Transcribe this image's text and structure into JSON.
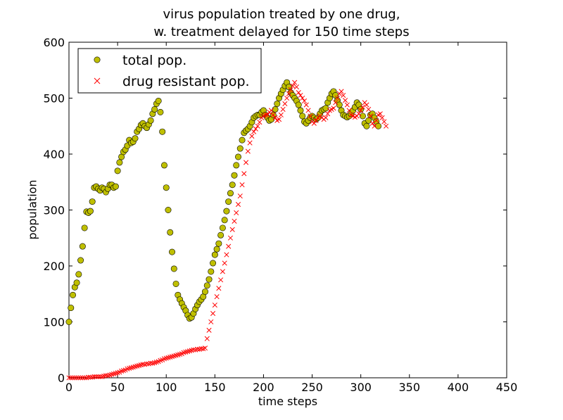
{
  "chart_data": {
    "type": "scatter",
    "title": "virus population treated by one drug,",
    "subtitle": "w. treatment delayed for 150 time steps",
    "xlabel": "time steps",
    "ylabel": "population",
    "xlim": [
      0,
      450
    ],
    "ylim": [
      0,
      600
    ],
    "x_ticks": [
      "0",
      "50",
      "100",
      "150",
      "200",
      "250",
      "300",
      "350",
      "400",
      "450"
    ],
    "y_ticks": [
      "0",
      "100",
      "200",
      "300",
      "400",
      "500",
      "600"
    ],
    "grid": false,
    "legend_position": "top-left",
    "x_step": 2,
    "series": [
      {
        "name": "total pop.",
        "marker": "circle",
        "color": "#bfbf00",
        "values": [
          100,
          125,
          148,
          162,
          170,
          185,
          210,
          235,
          268,
          297,
          295,
          298,
          315,
          340,
          342,
          338,
          335,
          340,
          338,
          332,
          338,
          345,
          345,
          340,
          342,
          370,
          385,
          395,
          404,
          408,
          415,
          425,
          420,
          422,
          428,
          440,
          445,
          452,
          455,
          450,
          447,
          453,
          460,
          472,
          480,
          490,
          495,
          475,
          440,
          380,
          340,
          300,
          260,
          225,
          195,
          168,
          148,
          140,
          133,
          126,
          120,
          112,
          106,
          108,
          115,
          123,
          130,
          136,
          140,
          145,
          154,
          165,
          176,
          190,
          205,
          220,
          230,
          240,
          255,
          268,
          282,
          298,
          315,
          330,
          345,
          362,
          380,
          395,
          410,
          425,
          438,
          442,
          445,
          450,
          457,
          465,
          468,
          470,
          470,
          475,
          478,
          470,
          465,
          460,
          462,
          470,
          480,
          490,
          500,
          508,
          515,
          522,
          528,
          520,
          510,
          505,
          500,
          495,
          488,
          478,
          468,
          458,
          455,
          460,
          465,
          468,
          465,
          462,
          465,
          472,
          478,
          480,
          482,
          492,
          500,
          508,
          512,
          505,
          496,
          488,
          478,
          470,
          468,
          466,
          468,
          472,
          478,
          484,
          492,
          488,
          480,
          468,
          455,
          450,
          460,
          470,
          472,
          465,
          458,
          450
        ],
        "x_shift": 0
      },
      {
        "name": "drug resistant pop.",
        "marker": "x",
        "color": "#ff0000",
        "values": [
          0,
          0,
          0,
          0,
          0,
          0,
          0,
          0,
          0,
          0,
          1,
          1,
          1,
          2,
          2,
          2,
          2,
          2,
          3,
          4,
          4,
          5,
          6,
          7,
          8,
          9,
          10,
          12,
          13,
          14,
          16,
          17,
          18,
          19,
          20,
          21,
          22,
          23,
          24,
          24,
          25,
          25,
          26,
          26,
          27,
          28,
          29,
          31,
          32,
          34,
          35,
          36,
          37,
          38,
          39,
          40,
          41,
          42,
          43,
          45,
          46,
          47,
          48,
          49,
          50,
          50,
          51,
          51,
          52,
          52,
          53,
          70,
          85,
          100,
          115,
          130,
          145,
          160,
          175,
          190,
          205,
          220,
          235,
          250,
          265,
          280,
          295,
          310,
          325,
          345,
          365,
          385,
          405,
          420,
          432,
          440,
          445,
          450,
          457,
          465,
          468,
          470,
          470,
          475,
          478,
          470,
          465,
          460,
          462,
          470,
          480,
          490,
          500,
          508,
          515,
          522,
          528,
          520,
          510,
          505,
          500,
          495,
          488,
          478,
          468,
          458,
          455,
          460,
          465,
          468,
          465,
          462,
          465,
          472,
          478,
          480,
          482,
          492,
          500,
          508,
          512,
          505,
          496,
          488,
          478,
          470,
          468,
          466,
          468,
          472,
          478,
          484,
          492,
          488,
          480,
          468,
          455,
          450,
          460,
          470,
          472,
          465,
          458,
          450
        ],
        "x_shift": 0
      }
    ],
    "colors": {
      "total_face": "#bfbf00",
      "total_edge": "#000000",
      "resistant": "#ff0000"
    }
  }
}
